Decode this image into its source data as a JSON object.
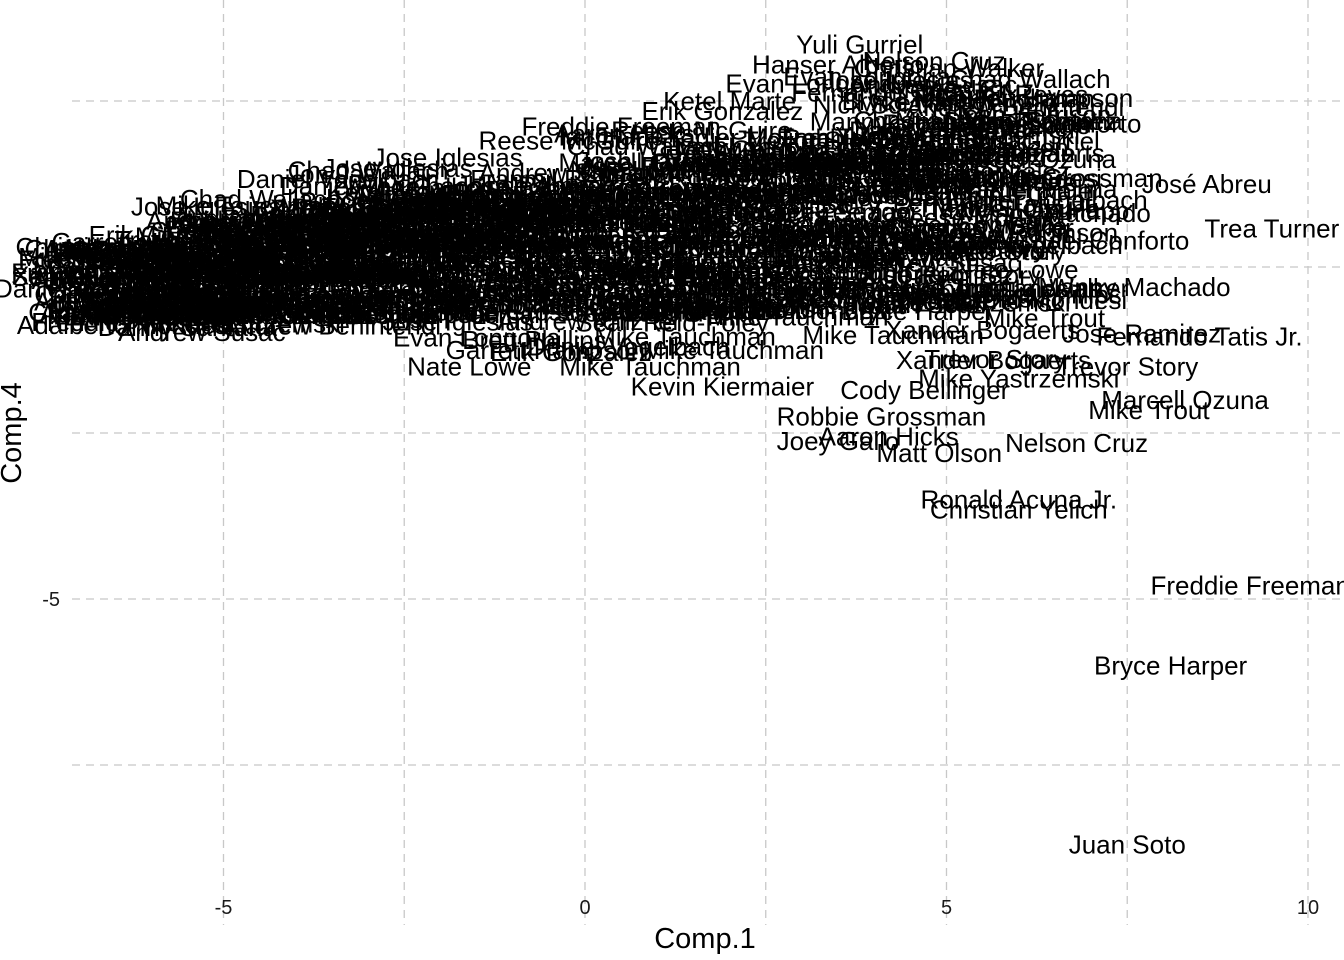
{
  "chart_data": {
    "type": "scatter",
    "marker": "text-labels",
    "xlabel": "Comp.1",
    "ylabel": "Comp.4",
    "xlim": [
      -7.2,
      10.4
    ],
    "ylim": [
      -9.2,
      4.05
    ],
    "x_ticks": [
      -5,
      0,
      5,
      10
    ],
    "y_ticks": [
      0,
      -5
    ],
    "grid": true,
    "legend": "none",
    "points": [
      {
        "x": 3.8,
        "y": 3.35,
        "label": "Yuli Gurriel"
      },
      {
        "x": 3.5,
        "y": 3.05,
        "label": "Hanser Alberto"
      },
      {
        "x": 3.9,
        "y": 2.87,
        "label": "Evan Longoria"
      },
      {
        "x": 5.8,
        "y": 2.6,
        "label": "Franmil Reyes"
      },
      {
        "x": 4.0,
        "y": 2.45,
        "label": "Nick Solak"
      },
      {
        "x": 2.0,
        "y": 2.5,
        "label": "Ketel Marte"
      },
      {
        "x": 1.9,
        "y": 2.35,
        "label": "Erik Gonzalez"
      },
      {
        "x": 5.5,
        "y": 2.1,
        "label": "Christian Walker"
      },
      {
        "x": 5.3,
        "y": 1.72,
        "label": "Corey Seager"
      },
      {
        "x": 2.2,
        "y": 1.95,
        "label": "Yadier Molina"
      },
      {
        "x": -1.9,
        "y": 1.65,
        "label": "Jose Iglesias"
      },
      {
        "x": -3.0,
        "y": 1.45,
        "label": "Chad Wallach"
      },
      {
        "x": 1.0,
        "y": 1.6,
        "label": "Josh Harrison"
      },
      {
        "x": -3.5,
        "y": 1.4,
        "label": "Jon Jay"
      },
      {
        "x": -2.2,
        "y": 1.2,
        "label": "Willie Calhoun"
      },
      {
        "x": 8.6,
        "y": 1.25,
        "label": "José Abreu"
      },
      {
        "x": 6.8,
        "y": 0.85,
        "label": "Ian Happ"
      },
      {
        "x": 9.5,
        "y": 0.58,
        "label": "Trea Turner"
      },
      {
        "x": 7.0,
        "y": 0.4,
        "label": "Michael Conforto"
      },
      {
        "x": -4.8,
        "y": 0.7,
        "label": "Andrew Knizner"
      },
      {
        "x": -3.4,
        "y": 0.78,
        "label": "Drew Robinson"
      },
      {
        "x": -6.0,
        "y": 0.38,
        "label": "Garrett Hampson"
      },
      {
        "x": -6.1,
        "y": 0.22,
        "label": "Reese McGuire"
      },
      {
        "x": -6.6,
        "y": -0.15,
        "label": "Sean Reid-Foley"
      },
      {
        "x": 7.6,
        "y": -0.3,
        "label": "Manny Machado"
      },
      {
        "x": 6.0,
        "y": -0.5,
        "label": "Adalberto Mondesi"
      },
      {
        "x": -5.5,
        "y": -0.9,
        "label": "Danny Santana"
      },
      {
        "x": -3.5,
        "y": -0.88,
        "label": "Andrew Benintendi"
      },
      {
        "x": -5.3,
        "y": -0.98,
        "label": "Andrew Susac"
      },
      {
        "x": -0.7,
        "y": -1.1,
        "label": "Brett Phillips"
      },
      {
        "x": 0.6,
        "y": -1.2,
        "label": "Daniel Vogelbach"
      },
      {
        "x": -1.6,
        "y": -1.5,
        "label": "Nate Lowe"
      },
      {
        "x": 0.9,
        "y": -1.5,
        "label": "Mike Tauchman"
      },
      {
        "x": 5.5,
        "y": -0.95,
        "label": "Xander Bogaerts"
      },
      {
        "x": 8.5,
        "y": -1.05,
        "label": "Fernando Tatis Jr."
      },
      {
        "x": 7.7,
        "y": -1.0,
        "label": "Jose Ramirez"
      },
      {
        "x": 7.5,
        "y": -1.5,
        "label": "Trevor Story"
      },
      {
        "x": 6.0,
        "y": -1.68,
        "label": "Mike Yastrzemski"
      },
      {
        "x": 1.9,
        "y": -1.8,
        "label": "Kevin Kiermaier"
      },
      {
        "x": 4.7,
        "y": -1.85,
        "label": "Cody Bellinger"
      },
      {
        "x": 8.3,
        "y": -2.0,
        "label": "Marcell Ozuna"
      },
      {
        "x": 7.8,
        "y": -2.15,
        "label": "Mike Trout"
      },
      {
        "x": 4.1,
        "y": -2.25,
        "label": "Robbie Grossman"
      },
      {
        "x": 4.2,
        "y": -2.55,
        "label": "Aaron Hicks"
      },
      {
        "x": 3.5,
        "y": -2.62,
        "label": "Joey Gallo"
      },
      {
        "x": 6.8,
        "y": -2.65,
        "label": "Nelson Cruz"
      },
      {
        "x": 4.9,
        "y": -2.8,
        "label": "Matt Olson"
      },
      {
        "x": 6.0,
        "y": -3.5,
        "label": "Ronald Acuna Jr."
      },
      {
        "x": 6.0,
        "y": -3.65,
        "label": "Christian Yelich"
      },
      {
        "x": 9.2,
        "y": -4.8,
        "label": "Freddie Freeman"
      },
      {
        "x": 8.1,
        "y": -6.0,
        "label": "Bryce Harper"
      },
      {
        "x": 7.5,
        "y": -8.7,
        "label": "Juan Soto"
      }
    ]
  }
}
